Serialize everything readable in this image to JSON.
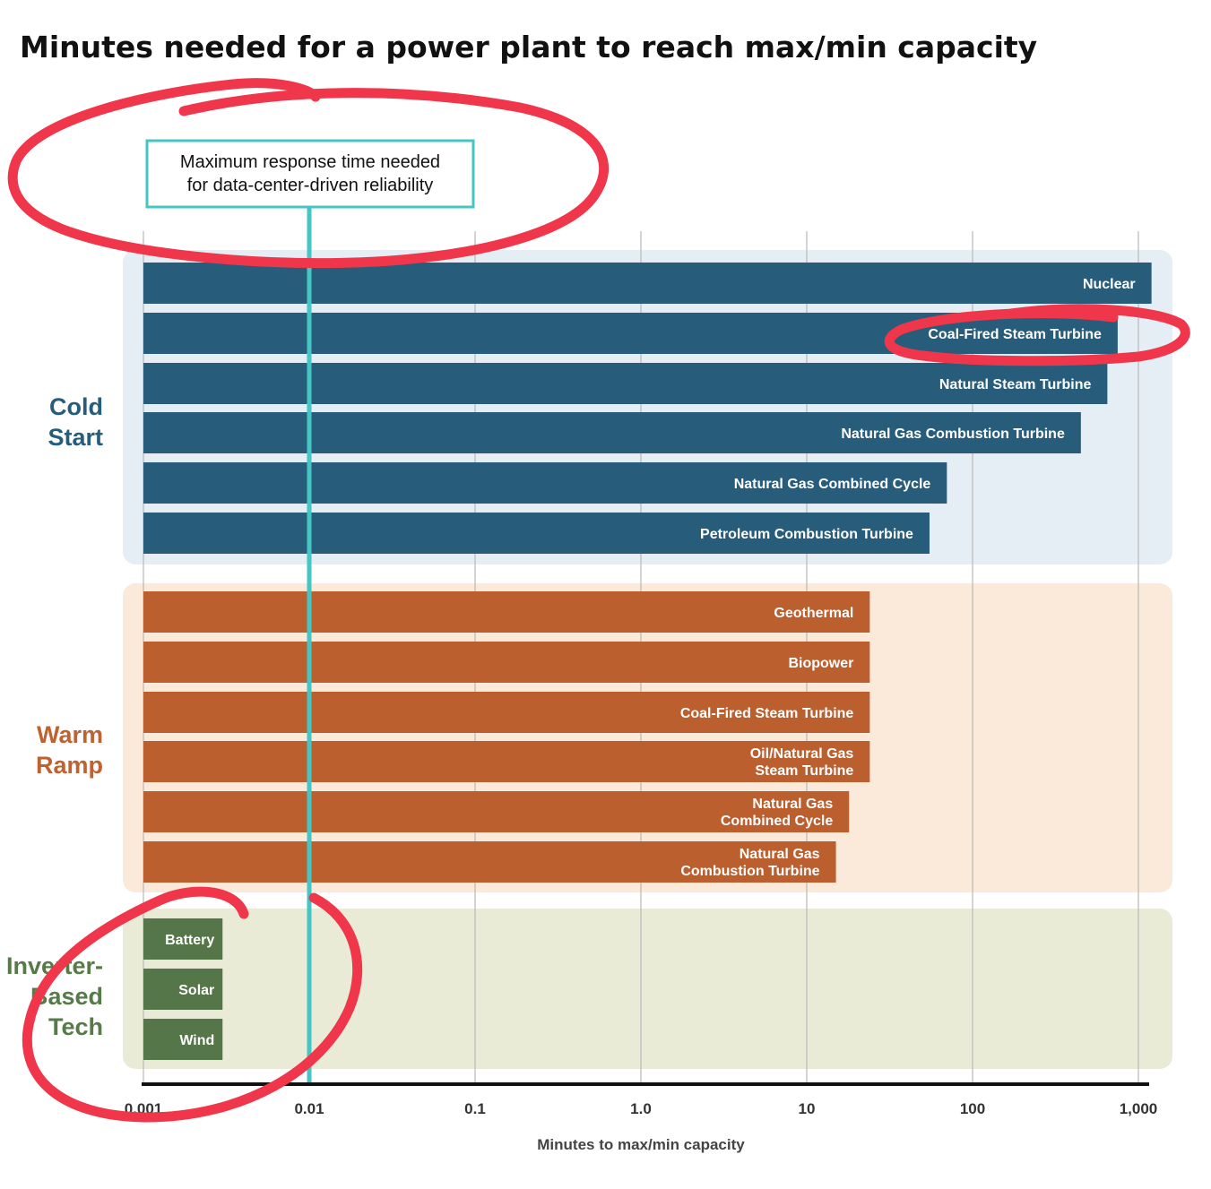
{
  "chart_data": {
    "type": "bar",
    "orientation": "horizontal",
    "title": "Minutes needed for a power plant to reach max/min capacity",
    "xlabel": "Minutes to max/min capacity",
    "x_scale": "log",
    "xlim": [
      0.001,
      1000
    ],
    "x_ticks": [
      0.001,
      0.01,
      0.1,
      1,
      10,
      100,
      1000
    ],
    "x_tick_labels": [
      "0.001",
      "0.01",
      "0.1",
      "1.0",
      "10",
      "100",
      "1,000"
    ],
    "grid": true,
    "groups": [
      {
        "name": "Cold Start",
        "color": "#275D7B",
        "background": "#E4EEF4",
        "label_color": "#275D7B",
        "categories": [
          "Nuclear",
          "Coal-Fired Steam Turbine",
          "Natural Steam Turbine",
          "Natural Gas Combustion Turbine",
          "Natural Gas Combined Cycle",
          "Petroleum Combustion Turbine"
        ],
        "values": [
          1200,
          750,
          650,
          450,
          70,
          55
        ]
      },
      {
        "name": "Warm Ramp",
        "color": "#BC5F2F",
        "background": "#FBEADA",
        "label_color": "#BF6230",
        "categories": [
          "Geothermal",
          "Biopower",
          "Coal-Fired Steam Turbine",
          "Oil/Natural Gas Steam Turbine",
          "Natural Gas Combined Cycle",
          "Natural Gas Combustion Turbine"
        ],
        "values": [
          24,
          24,
          24,
          24,
          18,
          15
        ]
      },
      {
        "name": "Inverter-Based Tech",
        "color": "#557649",
        "background": "#EAEBD7",
        "label_color": "#567A48",
        "categories": [
          "Battery",
          "Solar",
          "Wind"
        ],
        "values": [
          0.003,
          0.003,
          0.003
        ]
      }
    ],
    "reference_line": {
      "x": 0.01,
      "color": "#45C6C5",
      "label": "Maximum response time needed for data-center-driven reliability"
    },
    "annotation_color": "#F0364A"
  }
}
